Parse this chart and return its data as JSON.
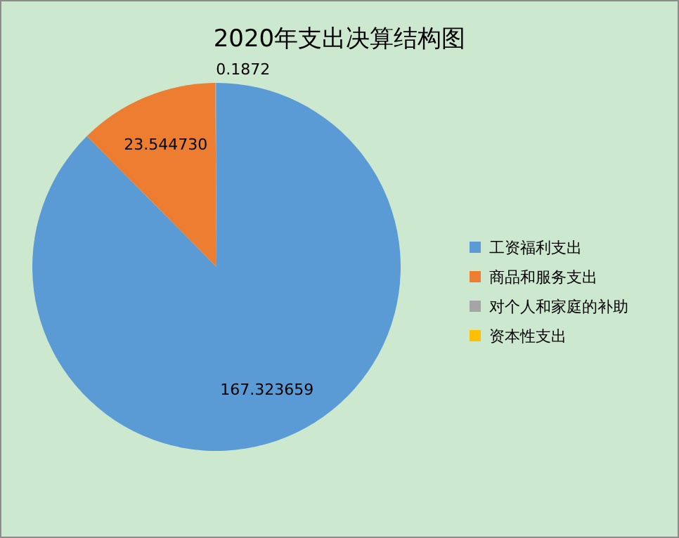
{
  "chart_data": {
    "type": "pie",
    "title": "2020年支出决算结构图",
    "categories": [
      "工资福利支出",
      "商品和服务支出",
      "对个人和家庭的补助",
      "资本性支出"
    ],
    "values": [
      167.323659,
      23.54473,
      0.1872,
      null
    ],
    "colors": [
      "#5b9bd5",
      "#ed7d31",
      "#a5a5a5",
      "#ffc000"
    ],
    "value_labels": [
      "167.323659",
      "23.544730",
      "0.1872",
      null
    ],
    "legend": "right"
  }
}
